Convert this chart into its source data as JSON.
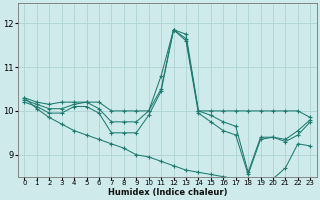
{
  "xlabel": "Humidex (Indice chaleur)",
  "ylabel": "",
  "xlim": [
    -0.5,
    23.5
  ],
  "ylim": [
    8.5,
    12.45
  ],
  "yticks": [
    9,
    10,
    11,
    12
  ],
  "xticks": [
    0,
    1,
    2,
    3,
    4,
    5,
    6,
    7,
    8,
    9,
    10,
    11,
    12,
    13,
    14,
    15,
    16,
    17,
    18,
    19,
    20,
    21,
    22,
    23
  ],
  "bg_color": "#ceeaea",
  "line_color": "#1e7b70",
  "grid_color": "#aed4d4",
  "lines": [
    {
      "x": [
        0,
        1,
        2,
        3,
        4,
        5,
        6,
        7,
        8,
        9,
        10,
        11,
        12,
        13,
        14,
        15,
        16,
        17,
        18,
        19,
        20,
        21,
        22,
        23
      ],
      "y": [
        10.3,
        10.2,
        10.15,
        10.2,
        10.2,
        10.2,
        10.2,
        10.0,
        10.0,
        10.0,
        10.0,
        10.8,
        11.85,
        11.75,
        10.0,
        10.0,
        10.0,
        10.0,
        10.0,
        10.0,
        10.0,
        10.0,
        10.0,
        9.85
      ]
    },
    {
      "x": [
        0,
        1,
        2,
        3,
        4,
        5,
        6,
        7,
        8,
        9,
        10,
        11,
        12,
        13,
        14,
        15,
        16,
        17,
        18,
        19,
        20,
        21,
        22,
        23
      ],
      "y": [
        10.25,
        10.15,
        10.05,
        10.05,
        10.15,
        10.2,
        10.05,
        9.75,
        9.75,
        9.75,
        10.0,
        10.5,
        11.85,
        11.65,
        10.0,
        9.9,
        9.75,
        9.65,
        8.6,
        9.4,
        9.4,
        9.35,
        9.55,
        9.8
      ]
    },
    {
      "x": [
        0,
        1,
        2,
        3,
        4,
        5,
        6,
        7,
        8,
        9,
        10,
        11,
        12,
        13,
        14,
        15,
        16,
        17,
        18,
        19,
        20,
        21,
        22,
        23
      ],
      "y": [
        10.2,
        10.1,
        9.95,
        9.95,
        10.1,
        10.1,
        9.95,
        9.5,
        9.5,
        9.5,
        9.9,
        10.45,
        11.85,
        11.6,
        9.95,
        9.75,
        9.55,
        9.45,
        8.55,
        9.35,
        9.4,
        9.3,
        9.45,
        9.75
      ]
    },
    {
      "x": [
        0,
        1,
        2,
        3,
        4,
        5,
        6,
        7,
        8,
        9,
        10,
        11,
        12,
        13,
        14,
        15,
        16,
        17,
        18,
        19,
        20,
        21,
        22,
        23
      ],
      "y": [
        10.3,
        10.05,
        9.85,
        9.7,
        9.55,
        9.45,
        9.35,
        9.25,
        9.15,
        9.0,
        8.95,
        8.85,
        8.75,
        8.65,
        8.6,
        8.55,
        8.5,
        8.45,
        8.4,
        8.35,
        8.45,
        8.7,
        9.25,
        9.2
      ]
    }
  ]
}
